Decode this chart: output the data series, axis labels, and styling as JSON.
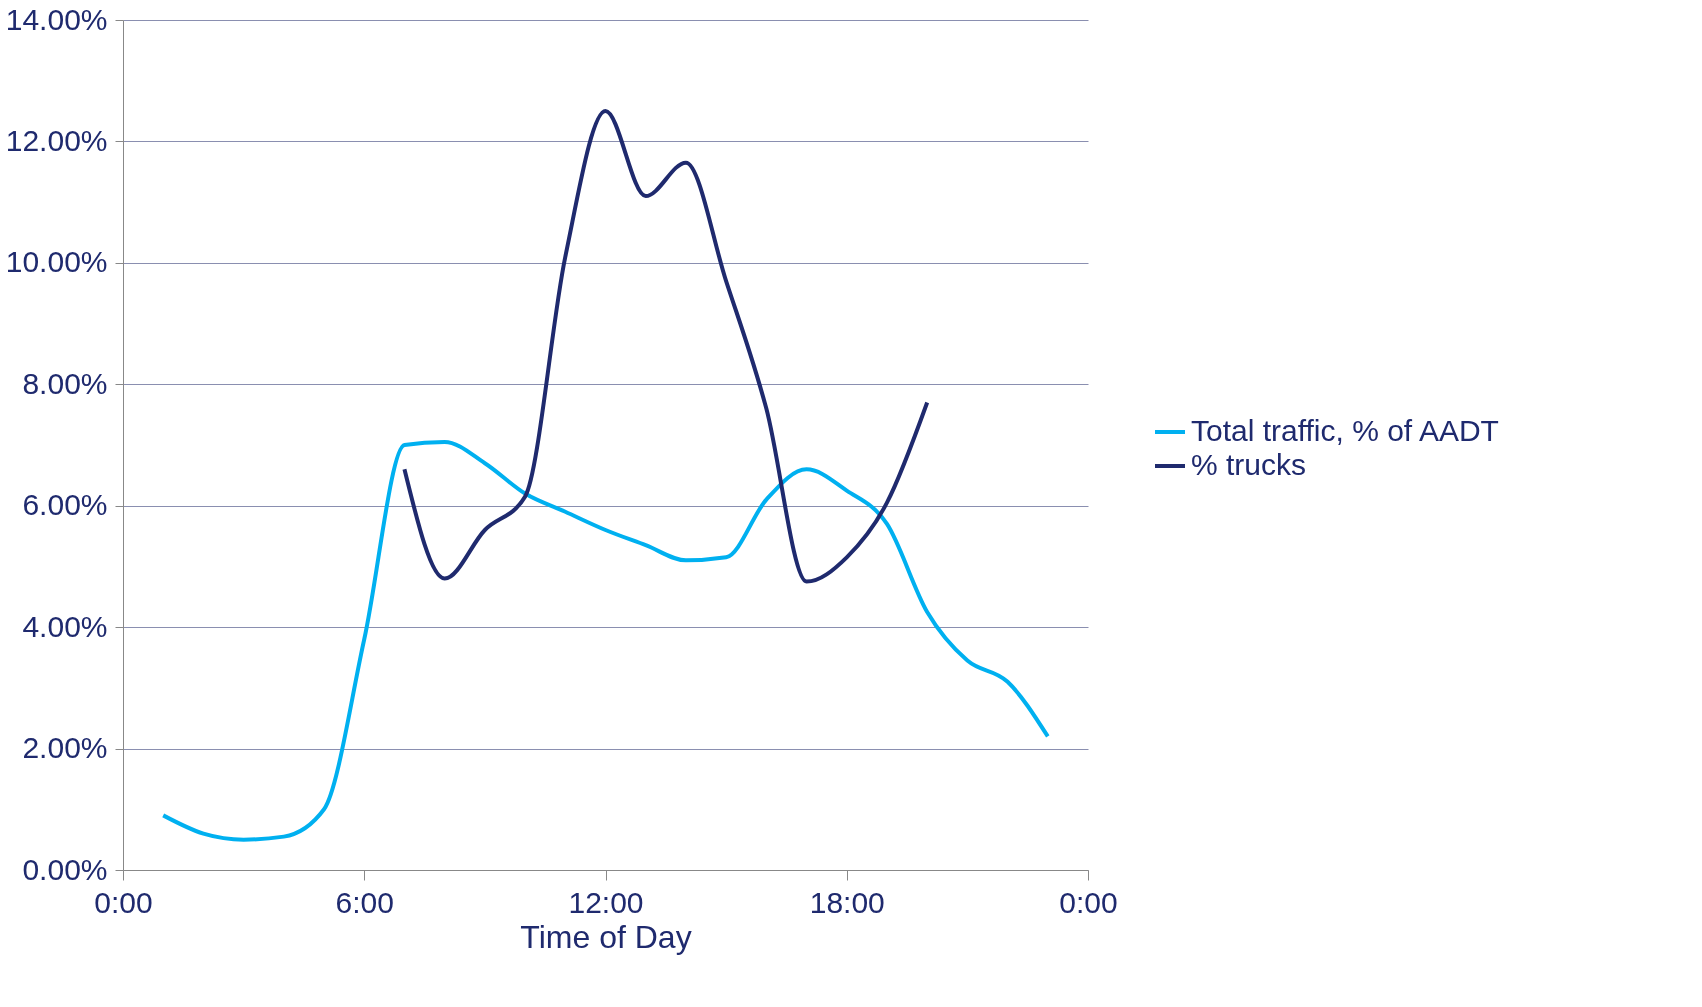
{
  "chart_data": {
    "type": "line",
    "xlabel": "Time of Day",
    "series": [
      {
        "name": "Total traffic, % of AADT",
        "color": "#00b0f0",
        "x": [
          1,
          2,
          3,
          4,
          5,
          6,
          7,
          8,
          9,
          10,
          11,
          12,
          13,
          14,
          15,
          16,
          17,
          18,
          19,
          20,
          21,
          22,
          23
        ],
        "values": [
          0.9,
          0.6,
          0.5,
          0.55,
          1.0,
          3.8,
          7.0,
          7.05,
          6.7,
          6.2,
          5.9,
          5.6,
          5.35,
          5.1,
          5.15,
          6.1,
          6.6,
          6.25,
          5.7,
          4.25,
          3.45,
          3.1,
          2.2
        ]
      },
      {
        "name": "% trucks",
        "color": "#1f2a6e",
        "x": [
          7,
          8,
          9,
          10,
          11,
          12,
          13,
          14,
          15,
          16,
          17,
          18,
          19,
          20
        ],
        "values": [
          6.6,
          4.8,
          5.6,
          6.15,
          10.1,
          12.5,
          11.1,
          11.65,
          9.7,
          7.6,
          4.75,
          5.15,
          6.05,
          7.7
        ]
      }
    ],
    "xlim": [
      0,
      24
    ],
    "xticks": [
      {
        "value": 0,
        "label": "0:00"
      },
      {
        "value": 6,
        "label": "6:00"
      },
      {
        "value": 12,
        "label": "12:00"
      },
      {
        "value": 18,
        "label": "18:00"
      },
      {
        "value": 24,
        "label": "0:00"
      }
    ],
    "ylim": [
      0,
      14
    ],
    "yticks": [
      {
        "value": 0,
        "label": "0.00%"
      },
      {
        "value": 2,
        "label": "2.00%"
      },
      {
        "value": 4,
        "label": "4.00%"
      },
      {
        "value": 6,
        "label": "6.00%"
      },
      {
        "value": 8,
        "label": "8.00%"
      },
      {
        "value": 10,
        "label": "10.00%"
      },
      {
        "value": 12,
        "label": "12.00%"
      },
      {
        "value": 14,
        "label": "14.00%"
      }
    ],
    "grid": "y",
    "legend": "right",
    "marker": "none",
    "line_style": "solid"
  }
}
